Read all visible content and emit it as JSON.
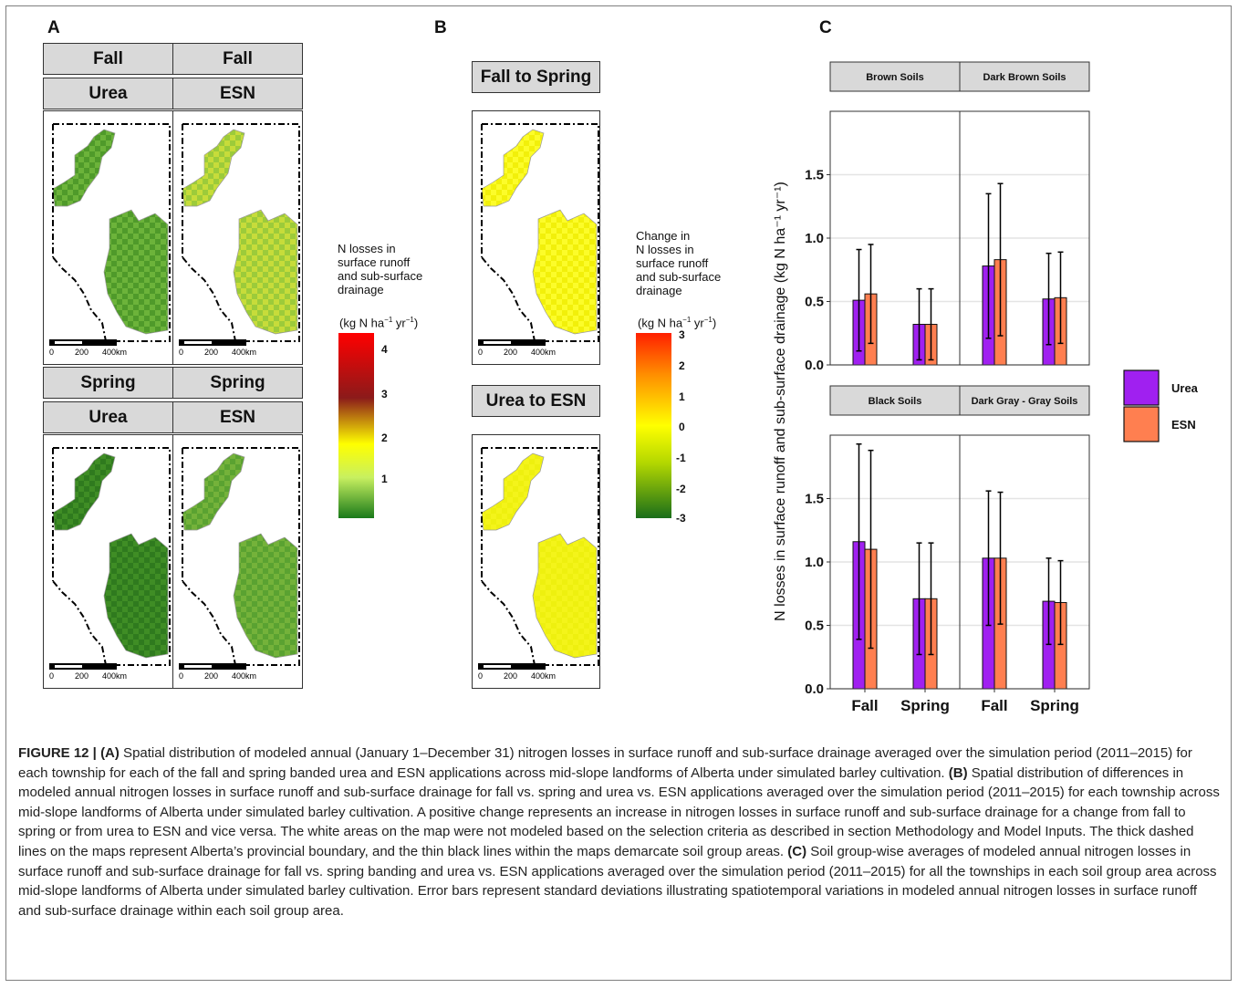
{
  "panel_labels": {
    "a": "A",
    "b": "B",
    "c": "C"
  },
  "panel_a": {
    "strips": [
      {
        "season": "Fall",
        "product": "Urea"
      },
      {
        "season": "Fall",
        "product": "ESN"
      },
      {
        "season": "Spring",
        "product": "Urea"
      },
      {
        "season": "Spring",
        "product": "ESN"
      }
    ],
    "scale_labels": [
      "0",
      "200",
      "400km"
    ],
    "legend": {
      "title_lines": [
        "N losses in",
        "surface runoff",
        "and sub-surface",
        "drainage"
      ],
      "unit_prefix": "(kg N ha",
      "unit_exp1": "−1",
      "unit_mid": " yr",
      "unit_exp2": "−1",
      "unit_suffix": ")",
      "ticks": [
        "4",
        "3",
        "2",
        "1"
      ],
      "colors": [
        "#ff0000",
        "#8b1a1a",
        "#ffff00",
        "#1a7a1a"
      ]
    }
  },
  "panel_b": {
    "strips": [
      "Fall to Spring",
      "Urea to ESN"
    ],
    "scale_labels": [
      "0",
      "200",
      "400km"
    ],
    "legend": {
      "title_lines": [
        "Change in",
        "N losses in",
        "surface runoff",
        "and sub-surface",
        "drainage"
      ],
      "unit_prefix": "(kg N ha",
      "unit_exp1": "−1",
      "unit_mid": " yr",
      "unit_exp2": "−1",
      "unit_suffix": ")",
      "ticks": [
        "3",
        "2",
        "1",
        "0",
        "-1",
        "-2",
        "-3"
      ],
      "colors": [
        "#ff2000",
        "#ff8c00",
        "#ffff00",
        "#1a6e1a"
      ]
    }
  },
  "chart_data": {
    "type": "bar",
    "ylabel": "N losses in surface runoff and sub-surface drainage (kg N ha⁻¹ yr⁻¹)",
    "ylim": [
      0,
      2.0
    ],
    "yticks": [
      "0.0",
      "0.5",
      "1.0",
      "1.5"
    ],
    "categories": [
      "Fall",
      "Spring"
    ],
    "series_legend": [
      {
        "name": "Urea",
        "color": "#a020f0"
      },
      {
        "name": "ESN",
        "color": "#ff7f50"
      }
    ],
    "facets": [
      {
        "name": "Brown Soils",
        "urea": [
          0.51,
          0.32
        ],
        "esn": [
          0.56,
          0.32
        ],
        "urea_sd": [
          0.4,
          0.28
        ],
        "esn_sd": [
          0.39,
          0.28
        ]
      },
      {
        "name": "Dark Brown Soils",
        "urea": [
          0.78,
          0.52
        ],
        "esn": [
          0.83,
          0.53
        ],
        "urea_sd": [
          0.57,
          0.36
        ],
        "esn_sd": [
          0.6,
          0.36
        ]
      },
      {
        "name": "Black Soils",
        "urea": [
          1.16,
          0.71
        ],
        "esn": [
          1.1,
          0.71
        ],
        "urea_sd": [
          0.77,
          0.44
        ],
        "esn_sd": [
          0.78,
          0.44
        ]
      },
      {
        "name": "Dark Gray - Gray Soils",
        "urea": [
          1.03,
          0.69
        ],
        "esn": [
          1.03,
          0.68
        ],
        "urea_sd": [
          0.53,
          0.34
        ],
        "esn_sd": [
          0.52,
          0.33
        ]
      }
    ]
  },
  "caption": {
    "fig_label": "FIGURE 12 | ",
    "a_label": "(A)",
    "a_text": " Spatial distribution of modeled annual (January 1–December 31) nitrogen losses in surface runoff and sub-surface drainage averaged over the simulation period (2011–2015) for each township for each of the fall and spring banded urea and ESN applications across mid-slope landforms of Alberta under simulated barley cultivation. ",
    "b_label": "(B)",
    "b_text": " Spatial distribution of differences in modeled annual nitrogen losses in surface runoff and sub-surface drainage for fall vs. spring and urea vs. ESN applications averaged over the simulation period (2011–2015) for each township across mid-slope landforms of Alberta under simulated barley cultivation. A positive change represents an increase in nitrogen losses in surface runoff and sub-surface drainage for a change from fall to spring or from urea to ESN and vice versa. The white areas on the map were not modeled based on the selection criteria as described in section Methodology and Model Inputs. The thick dashed lines on the maps represent Alberta’s provincial boundary, and the thin black lines within the maps demarcate soil group areas. ",
    "c_label": "(C)",
    "c_text": " Soil group-wise averages of modeled annual nitrogen losses in surface runoff and sub-surface drainage for fall vs. spring banding and urea vs. ESN applications averaged over the simulation period (2011–2015) for all the townships in each soil group area across mid-slope landforms of Alberta under simulated barley cultivation. Error bars represent standard deviations illustrating spatiotemporal variations in modeled annual nitrogen losses in surface runoff and sub-surface drainage within each soil group area."
  }
}
